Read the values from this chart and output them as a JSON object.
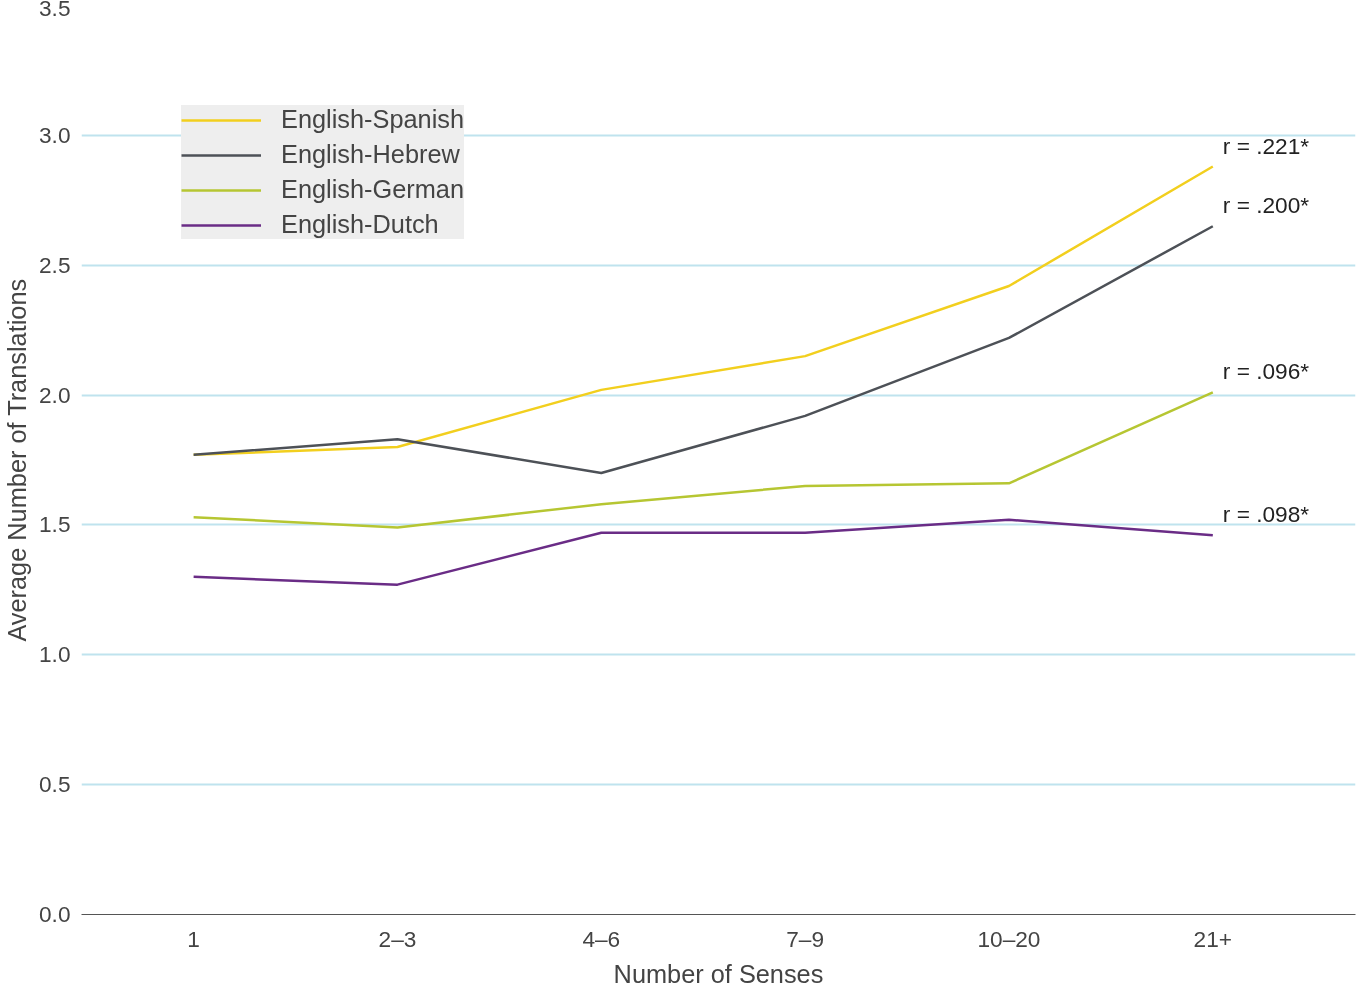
{
  "chart_data": {
    "type": "line",
    "xlabel": "Number of Senses",
    "ylabel": "Average Number of Translations",
    "categories": [
      "1",
      "2–3",
      "4–6",
      "7–9",
      "10–20",
      "21+"
    ],
    "series": [
      {
        "name": "English-Spanish",
        "color": "#f2cf1e",
        "values": [
          1.77,
          1.8,
          2.02,
          2.15,
          2.42,
          2.88
        ]
      },
      {
        "name": "English-Hebrew",
        "color": "#4d5157",
        "values": [
          1.77,
          1.83,
          1.7,
          1.92,
          2.22,
          2.65
        ]
      },
      {
        "name": "English-German",
        "color": "#b6c632",
        "values": [
          1.53,
          1.49,
          1.58,
          1.65,
          1.66,
          2.01
        ]
      },
      {
        "name": "English-Dutch",
        "color": "#6a2c86",
        "values": [
          1.3,
          1.27,
          1.47,
          1.47,
          1.52,
          1.46
        ]
      }
    ],
    "ylim": [
      0,
      3.5
    ],
    "yticks": [
      {
        "value": 0,
        "label": "0.0"
      },
      0.5,
      {
        "value": 1,
        "label": "1.0"
      },
      1.5,
      {
        "value": 2,
        "label": "2.0"
      },
      2.5,
      {
        "value": 3,
        "label": "3.0"
      },
      3.5
    ],
    "grid": "y",
    "legend": "top left",
    "marker": "none",
    "line_style": "solid",
    "annotations": [
      {
        "text": "r = .221*",
        "x": "21+",
        "y": 2.88
      },
      {
        "text": "r = .200*",
        "x": "21+",
        "y": 2.65
      },
      {
        "text": "r = .096*",
        "x": "21+",
        "y": 2.01
      },
      {
        "text": "r = .098*",
        "x": "21+",
        "y": 1.46
      }
    ]
  }
}
